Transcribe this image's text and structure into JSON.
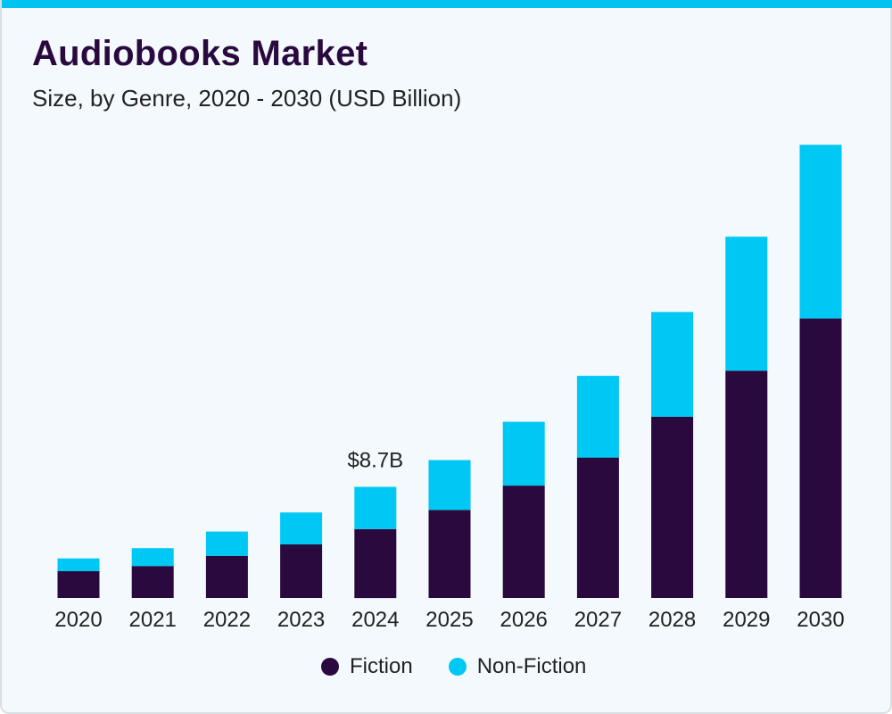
{
  "header": {
    "title": "Audiobooks Market",
    "subtitle": "Size, by Genre, 2020 - 2030 (USD Billion)"
  },
  "colors": {
    "accent_bar": "#00c4f0",
    "fiction": "#2a0a3e",
    "non_fiction": "#00c8f4",
    "text": "#222222"
  },
  "legend": {
    "fiction_label": "Fiction",
    "non_fiction_label": "Non-Fiction"
  },
  "chart_data": {
    "type": "bar",
    "stacked": true,
    "title": "Audiobooks Market",
    "subtitle": "Size, by Genre, 2020 - 2030 (USD Billion)",
    "xlabel": "",
    "ylabel": "",
    "categories": [
      "2020",
      "2021",
      "2022",
      "2023",
      "2024",
      "2025",
      "2026",
      "2027",
      "2028",
      "2029",
      "2030"
    ],
    "series": [
      {
        "name": "Fiction",
        "color": "#2a0a3e",
        "values": [
          2.1,
          2.5,
          3.3,
          4.2,
          5.4,
          6.9,
          8.8,
          11.0,
          14.2,
          17.8,
          21.9
        ]
      },
      {
        "name": "Non-Fiction",
        "color": "#00c8f4",
        "values": [
          1.0,
          1.4,
          1.9,
          2.5,
          3.3,
          3.9,
          5.0,
          6.4,
          8.2,
          10.5,
          13.6
        ]
      }
    ],
    "annotations": [
      {
        "category": "2024",
        "text": "$8.7B"
      }
    ],
    "ylim": [
      0,
      36
    ],
    "grid": false,
    "legend_position": "bottom"
  }
}
